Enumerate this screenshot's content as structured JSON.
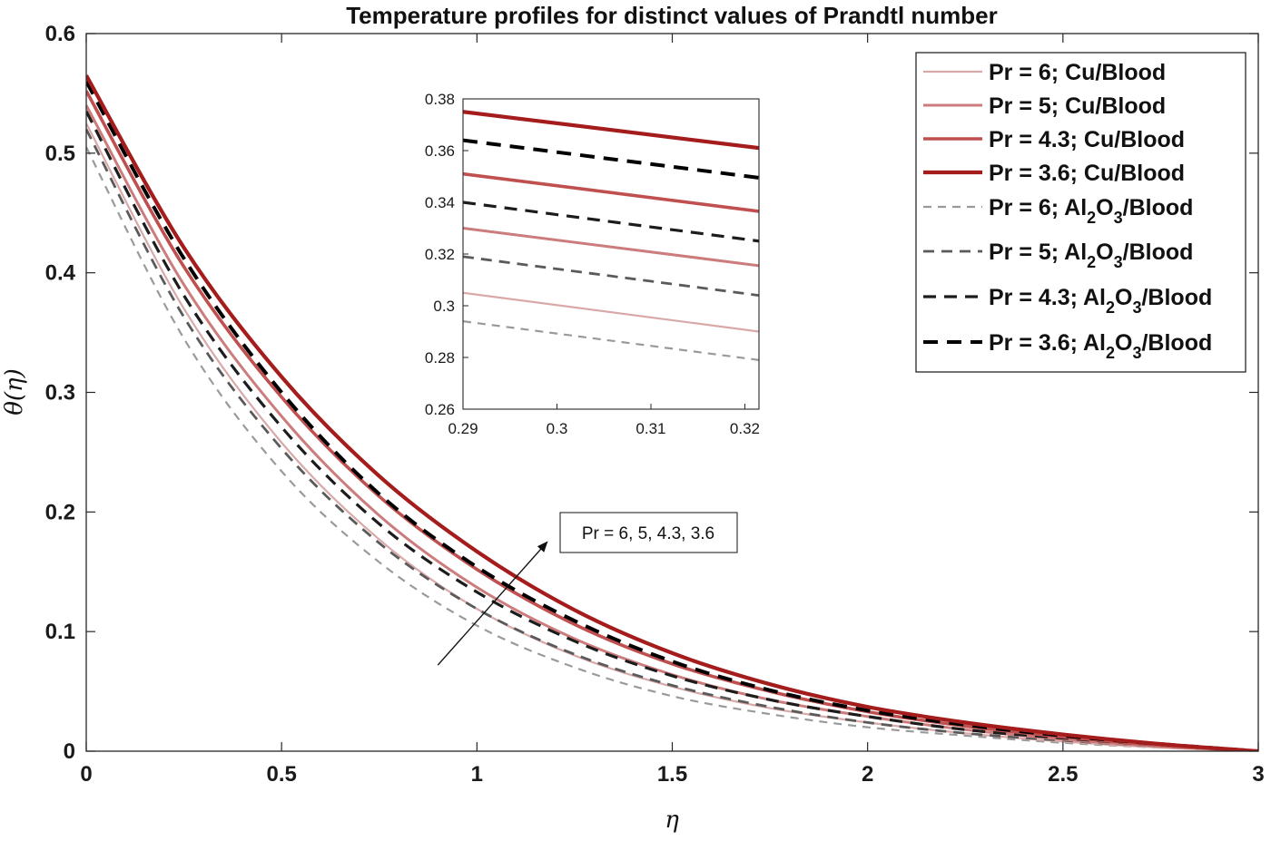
{
  "chart_data": {
    "type": "line",
    "title": "Temperature profiles for distinct values of Prandtl number",
    "xlabel": "η",
    "ylabel": "θ(η)",
    "xlim": [
      0,
      3
    ],
    "ylim": [
      0,
      0.6
    ],
    "xticks": [
      0,
      0.5,
      1,
      1.5,
      2,
      2.5,
      3
    ],
    "xtick_labels": [
      "0",
      "0.5",
      "1",
      "1.5",
      "2",
      "2.5",
      "3"
    ],
    "yticks": [
      0,
      0.1,
      0.2,
      0.3,
      0.4,
      0.5,
      0.6
    ],
    "ytick_labels": [
      "0",
      "0.1",
      "0.2",
      "0.3",
      "0.4",
      "0.5",
      "0.6"
    ],
    "legend_position": "top-right",
    "series": [
      {
        "name": "Pr = 6; Cu/Blood",
        "legend": {
          "pre": "Pr = 6; Cu/Blood"
        },
        "color": "#d9a9a9",
        "dash": "solid",
        "width": 2.2,
        "x": [
          0,
          0.25,
          0.5,
          0.75,
          1,
          1.25,
          1.5,
          1.75,
          2,
          2.25,
          2.5,
          2.75,
          3
        ],
        "y": [
          0.525,
          0.37,
          0.258,
          0.177,
          0.119,
          0.08,
          0.054,
          0.036,
          0.024,
          0.015,
          0.008,
          0.003,
          0
        ]
      },
      {
        "name": "Pr = 5; Cu/Blood",
        "legend": {
          "pre": "Pr = 5; Cu/Blood"
        },
        "color": "#cc7c7c",
        "dash": "solid",
        "width": 3,
        "x": [
          0,
          0.25,
          0.5,
          0.75,
          1,
          1.25,
          1.5,
          1.75,
          2,
          2.25,
          2.5,
          2.75,
          3
        ],
        "y": [
          0.54,
          0.39,
          0.28,
          0.197,
          0.137,
          0.094,
          0.064,
          0.043,
          0.029,
          0.018,
          0.01,
          0.004,
          0
        ]
      },
      {
        "name": "Pr = 4.3; Cu/Blood",
        "legend": {
          "pre": "Pr = 4.3; Cu/Blood"
        },
        "color": "#c05050",
        "dash": "solid",
        "width": 3.6,
        "x": [
          0,
          0.25,
          0.5,
          0.75,
          1,
          1.25,
          1.5,
          1.75,
          2,
          2.25,
          2.5,
          2.75,
          3
        ],
        "y": [
          0.552,
          0.405,
          0.296,
          0.213,
          0.152,
          0.106,
          0.073,
          0.05,
          0.033,
          0.021,
          0.012,
          0.005,
          0
        ]
      },
      {
        "name": "Pr = 3.6; Cu/Blood",
        "legend": {
          "pre": "Pr = 3.6; Cu/Blood"
        },
        "color": "#a51c1c",
        "dash": "solid",
        "width": 4.2,
        "x": [
          0,
          0.25,
          0.5,
          0.75,
          1,
          1.25,
          1.5,
          1.75,
          2,
          2.25,
          2.5,
          2.75,
          3
        ],
        "y": [
          0.565,
          0.421,
          0.313,
          0.23,
          0.167,
          0.118,
          0.082,
          0.056,
          0.037,
          0.024,
          0.014,
          0.006,
          0
        ]
      },
      {
        "name": "Pr = 6; Al2O3/Blood",
        "legend": {
          "pre": "Pr = 6; Al",
          "sub1": "2",
          "mid": "O",
          "sub2": "3",
          "post": "/Blood"
        },
        "color": "#9a9a9a",
        "dash": "9,7",
        "width": 2.2,
        "x": [
          0,
          0.25,
          0.5,
          0.75,
          1,
          1.25,
          1.5,
          1.75,
          2,
          2.25,
          2.5,
          2.75,
          3
        ],
        "y": [
          0.505,
          0.345,
          0.234,
          0.158,
          0.105,
          0.07,
          0.046,
          0.031,
          0.02,
          0.013,
          0.007,
          0.003,
          0
        ]
      },
      {
        "name": "Pr = 5; Al2O3/Blood",
        "legend": {
          "pre": "Pr = 5; Al",
          "sub1": "2",
          "mid": "O",
          "sub2": "3",
          "post": "/Blood"
        },
        "color": "#5a5a5a",
        "dash": "12,8",
        "width": 2.8,
        "x": [
          0,
          0.25,
          0.5,
          0.75,
          1,
          1.25,
          1.5,
          1.75,
          2,
          2.25,
          2.5,
          2.75,
          3
        ],
        "y": [
          0.52,
          0.363,
          0.253,
          0.174,
          0.119,
          0.081,
          0.055,
          0.037,
          0.024,
          0.015,
          0.009,
          0.004,
          0
        ]
      },
      {
        "name": "Pr = 4.3; Al2O3/Blood",
        "legend": {
          "pre": "Pr = 4.3; Al",
          "sub1": "2",
          "mid": "O",
          "sub2": "3",
          "post": "/Blood"
        },
        "color": "#1c1c1c",
        "dash": "14,9",
        "width": 3.2,
        "x": [
          0,
          0.25,
          0.5,
          0.75,
          1,
          1.25,
          1.5,
          1.75,
          2,
          2.25,
          2.5,
          2.75,
          3
        ],
        "y": [
          0.535,
          0.381,
          0.271,
          0.19,
          0.133,
          0.092,
          0.063,
          0.043,
          0.029,
          0.018,
          0.011,
          0.005,
          0
        ]
      },
      {
        "name": "Pr = 3.6; Al2O3/Blood",
        "legend": {
          "pre": "Pr = 3.6; Al",
          "sub1": "2",
          "mid": "O",
          "sub2": "3",
          "post": "/Blood"
        },
        "color": "#000000",
        "dash": "16,10",
        "width": 4,
        "x": [
          0,
          0.25,
          0.5,
          0.75,
          1,
          1.25,
          1.5,
          1.75,
          2,
          2.25,
          2.5,
          2.75,
          3
        ],
        "y": [
          0.56,
          0.412,
          0.3,
          0.215,
          0.154,
          0.109,
          0.075,
          0.051,
          0.034,
          0.022,
          0.013,
          0.006,
          0
        ]
      }
    ],
    "inset": {
      "xlim": [
        0.29,
        0.3215
      ],
      "ylim": [
        0.26,
        0.38
      ],
      "xticks": [
        0.29,
        0.3,
        0.31,
        0.32
      ],
      "xtick_labels": [
        "0.29",
        "0.3",
        "0.31",
        "0.32"
      ],
      "yticks": [
        0.26,
        0.28,
        0.3,
        0.32,
        0.34,
        0.36,
        0.38
      ],
      "ytick_labels": [
        "0.26",
        "0.28",
        "0.3",
        "0.32",
        "0.34",
        "0.36",
        "0.38"
      ],
      "series_values": [
        {
          "series": 0,
          "x": [
            0.29,
            0.3215
          ],
          "y": [
            0.305,
            0.29
          ]
        },
        {
          "series": 1,
          "x": [
            0.29,
            0.3215
          ],
          "y": [
            0.33,
            0.3155
          ]
        },
        {
          "series": 2,
          "x": [
            0.29,
            0.3215
          ],
          "y": [
            0.351,
            0.3365
          ]
        },
        {
          "series": 3,
          "x": [
            0.29,
            0.3215
          ],
          "y": [
            0.375,
            0.361
          ]
        },
        {
          "series": 4,
          "x": [
            0.29,
            0.3215
          ],
          "y": [
            0.294,
            0.279
          ]
        },
        {
          "series": 5,
          "x": [
            0.29,
            0.3215
          ],
          "y": [
            0.319,
            0.304
          ]
        },
        {
          "series": 6,
          "x": [
            0.29,
            0.3215
          ],
          "y": [
            0.34,
            0.325
          ]
        },
        {
          "series": 7,
          "x": [
            0.29,
            0.3215
          ],
          "y": [
            0.364,
            0.3495
          ]
        }
      ]
    },
    "annotation": {
      "text": "Pr = 6, 5, 4.3, 3.6",
      "arrow_from": [
        0.9,
        0.072
      ],
      "arrow_to": [
        1.18,
        0.175
      ]
    }
  }
}
